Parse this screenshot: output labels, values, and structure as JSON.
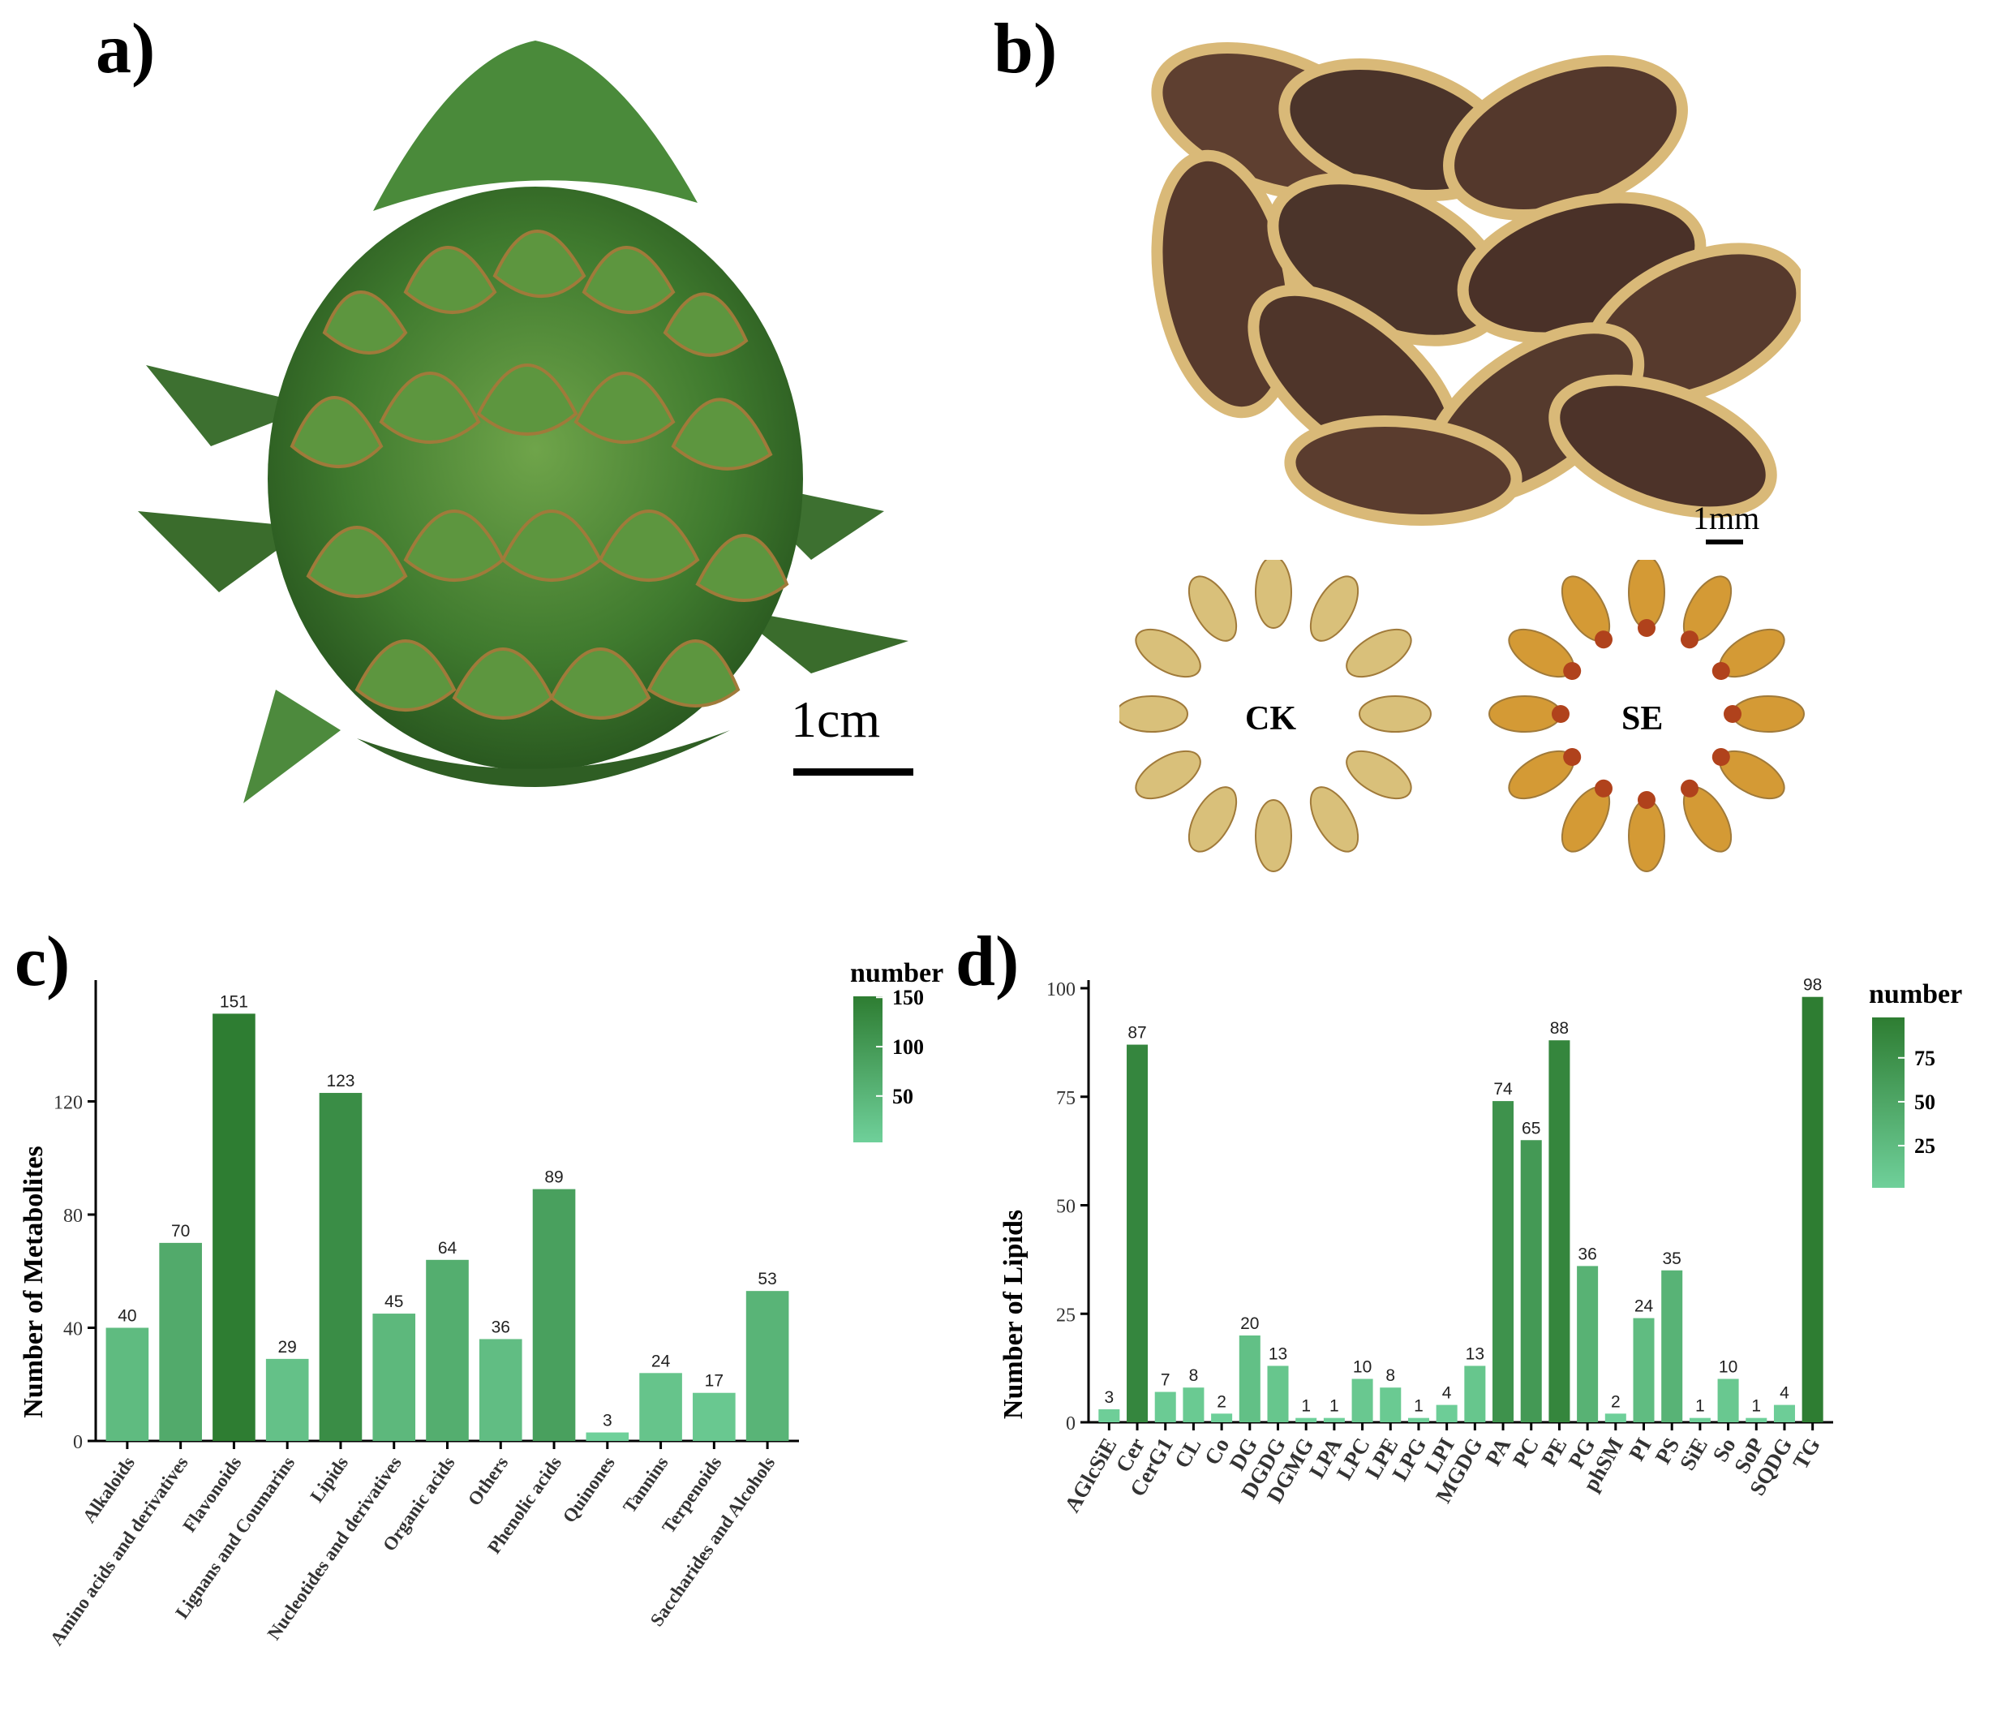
{
  "panels": {
    "a": {
      "label": "a)",
      "scale_label": "1cm"
    },
    "b": {
      "label": "b)",
      "scale_label": "1mm",
      "ring_left": "CK",
      "ring_right": "SE"
    },
    "c": {
      "label": "c)"
    },
    "d": {
      "label": "d)"
    }
  },
  "colors": {
    "low": "#6fd09a",
    "high": "#2e7d32"
  },
  "chart_data": [
    {
      "type": "bar",
      "panel": "c",
      "title": "",
      "xlabel": "",
      "ylabel": "Number of Metabolites",
      "ylim": [
        0,
        160
      ],
      "yticks": [
        0,
        40,
        80,
        120
      ],
      "categories": [
        "Alkaloids",
        "Amino acids and derivatives",
        "Flavonoids",
        "Lignans and Coumarins",
        "Lipids",
        "Nucleotides and derivatives",
        "Organic acids",
        "Others",
        "Phenolic acids",
        "Quinones",
        "Tannins",
        "Terpenoids",
        "Saccharides and Alcohols"
      ],
      "values": [
        40,
        70,
        151,
        29,
        123,
        45,
        64,
        36,
        89,
        3,
        24,
        17,
        53
      ],
      "legend": {
        "title": "number",
        "ticks": [
          150,
          100,
          50
        ],
        "range": [
          3,
          151
        ],
        "placement": "right"
      },
      "grid": false
    },
    {
      "type": "bar",
      "panel": "d",
      "title": "",
      "xlabel": "",
      "ylabel": "Number of Lipids",
      "ylim": [
        0,
        100
      ],
      "yticks": [
        0,
        25,
        50,
        75,
        100
      ],
      "categories": [
        "AGlcSiE",
        "Cer",
        "CerG1",
        "CL",
        "Co",
        "DG",
        "DGDG",
        "DGMG",
        "LPA",
        "LPC",
        "LPE",
        "LPG",
        "LPI",
        "MGDG",
        "PA",
        "PC",
        "PE",
        "PG",
        "phSM",
        "PI",
        "PS",
        "SiE",
        "So",
        "SoP",
        "SQDG",
        "TG"
      ],
      "values": [
        3,
        87,
        7,
        8,
        2,
        20,
        13,
        1,
        1,
        10,
        8,
        1,
        4,
        13,
        74,
        65,
        88,
        36,
        2,
        24,
        35,
        1,
        10,
        1,
        4,
        98
      ],
      "legend": {
        "title": "number",
        "ticks": [
          75,
          50,
          25
        ],
        "range": [
          1,
          98
        ],
        "placement": "right"
      },
      "grid": false
    }
  ]
}
